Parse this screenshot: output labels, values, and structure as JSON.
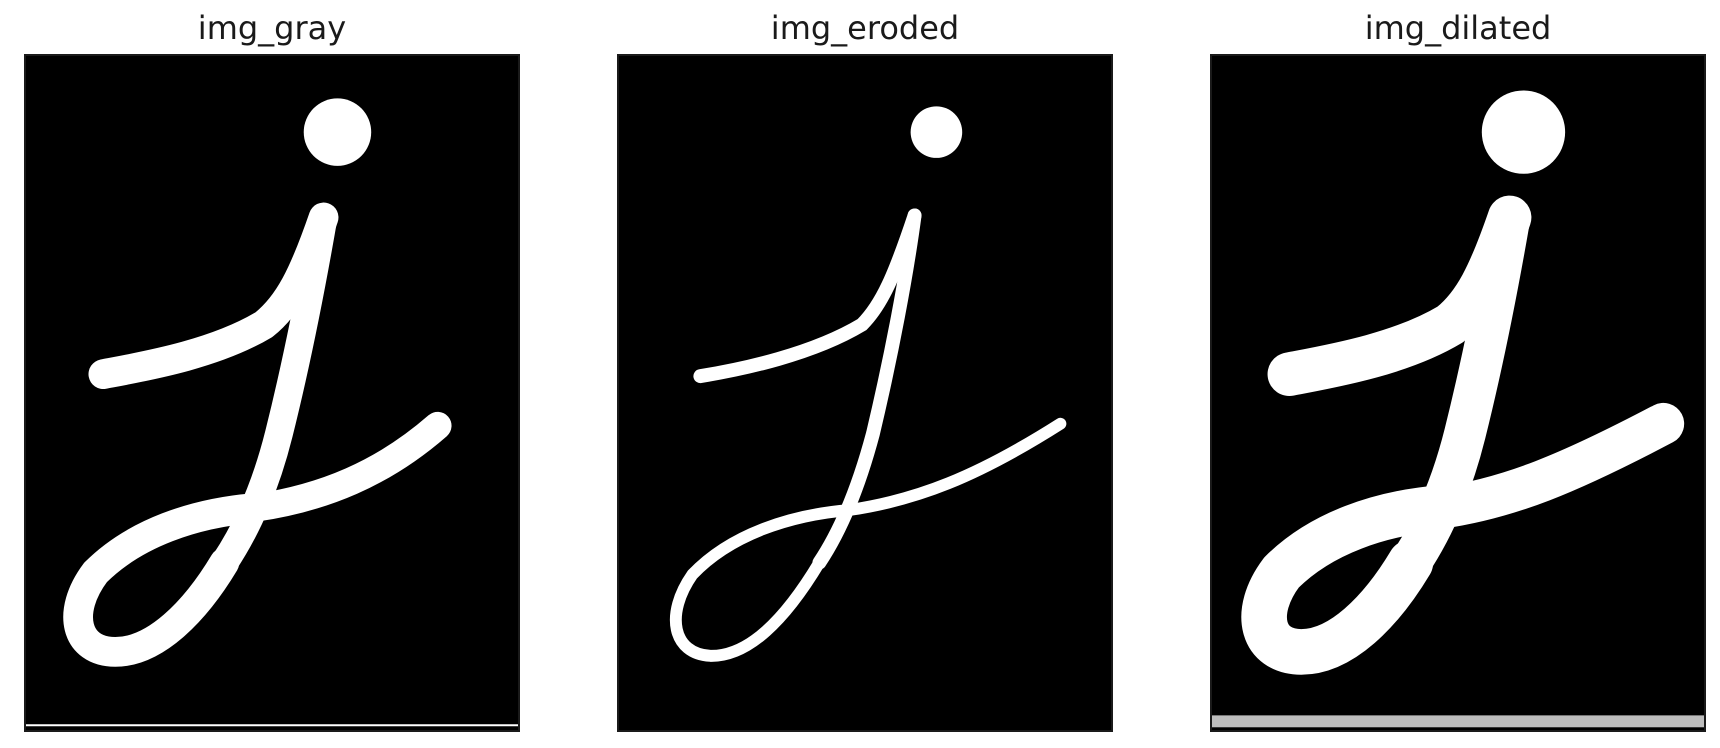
{
  "panels": [
    {
      "title": "img_gray",
      "image": "handwritten-letter-j",
      "stroke_style": "medium"
    },
    {
      "title": "img_eroded",
      "image": "handwritten-letter-j",
      "stroke_style": "thin"
    },
    {
      "title": "img_dilated",
      "image": "handwritten-letter-j",
      "stroke_style": "thick"
    }
  ],
  "colors": {
    "background": "#000000",
    "foreground": "#ffffff",
    "title_text": "#1a1a1a"
  }
}
